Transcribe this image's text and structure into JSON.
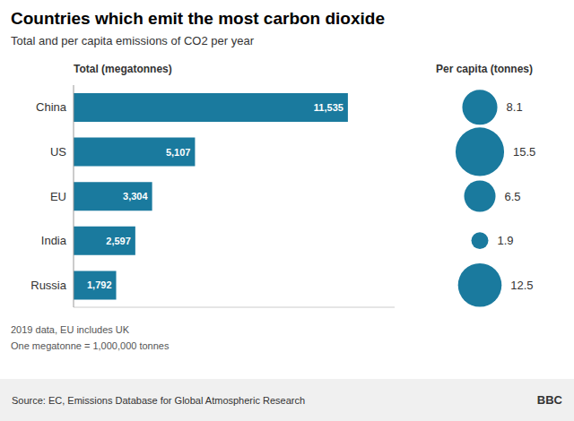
{
  "chart_data": {
    "type": "bar",
    "orientation": "horizontal",
    "title": "Countries which emit the most carbon dioxide",
    "subtitle": "Total and per capita emissions of CO2 per year",
    "xlabel": "Total (megatonnes)",
    "categories": [
      "China",
      "US",
      "EU",
      "India",
      "Russia"
    ],
    "values": [
      11535,
      5107,
      3304,
      2597,
      1792
    ],
    "value_labels": [
      "11,535",
      "5,107",
      "3,304",
      "2,597",
      "1,792"
    ],
    "color": "#1a7a9e",
    "xlim": [
      0,
      13500
    ],
    "data_labels": true,
    "tick_labels": "y",
    "grid": false,
    "per_capita": {
      "label": "Per capita (tonnes)",
      "values": [
        8.1,
        15.5,
        6.5,
        1.9,
        12.5
      ],
      "value_labels": [
        "8.1",
        "15.5",
        "6.5",
        "1.9",
        "12.5"
      ],
      "color": "#1a7a9e"
    },
    "annotations": [
      "2019 data, EU includes UK",
      "One megatonne = 1,000,000 tonnes",
      "Source: EC, Emissions Database for Global Atmospheric Research",
      "BBC"
    ]
  }
}
